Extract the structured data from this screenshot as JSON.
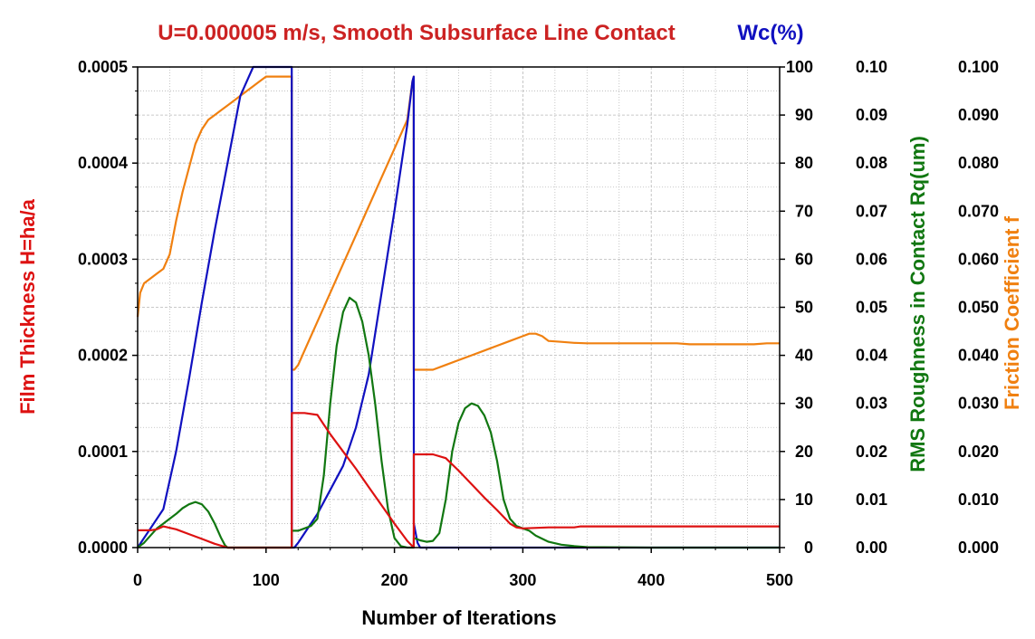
{
  "chart_data": {
    "type": "line",
    "title": "U=0.000005 m/s, Smooth Subsurface Line Contact",
    "title_right": "Wc(%)",
    "xlabel": "Number of Iterations",
    "xlim": [
      0,
      500
    ],
    "x_ticks": [
      "0",
      "100",
      "200",
      "300",
      "400",
      "500"
    ],
    "grid": true,
    "axes": {
      "left": {
        "label": "Film Thickness H=ha/a",
        "color": "#dd1111",
        "range": [
          0,
          0.0005
        ],
        "ticks": [
          "0.0000",
          "0.0001",
          "0.0002",
          "0.0003",
          "0.0004",
          "0.0005"
        ]
      },
      "wc": {
        "label": "Wc(%)",
        "color": "#1010c0",
        "range": [
          0,
          100
        ],
        "ticks": [
          "0",
          "10",
          "20",
          "30",
          "40",
          "50",
          "60",
          "70",
          "80",
          "90",
          "100"
        ]
      },
      "rq": {
        "label": "RMS Roughness in Contact Rq(um)",
        "color": "#117711",
        "range": [
          0,
          0.1
        ],
        "ticks": [
          "0.00",
          "0.01",
          "0.02",
          "0.03",
          "0.04",
          "0.05",
          "0.06",
          "0.07",
          "0.08",
          "0.09",
          "0.10"
        ]
      },
      "f": {
        "label": "Friction Coefficient f",
        "color": "#f08010",
        "range": [
          0,
          0.1
        ],
        "ticks": [
          "0.000",
          "0.010",
          "0.020",
          "0.030",
          "0.040",
          "0.050",
          "0.060",
          "0.070",
          "0.080",
          "0.090",
          "0.100"
        ]
      }
    },
    "series": [
      {
        "axis": "f",
        "color": "#f08010",
        "x": [
          0,
          2,
          5,
          10,
          15,
          20,
          25,
          30,
          35,
          40,
          45,
          50,
          55,
          60,
          65,
          70,
          80,
          90,
          95,
          100,
          110,
          120,
          120.1,
          122,
          125,
          130,
          140,
          150,
          160,
          170,
          180,
          190,
          200,
          210,
          214,
          215,
          215.1,
          217,
          220,
          230,
          240,
          250,
          260,
          270,
          280,
          290,
          300,
          305,
          310,
          315,
          320,
          330,
          340,
          350,
          400,
          420,
          430,
          450,
          480,
          490,
          500
        ],
        "y": [
          0.048,
          0.053,
          0.055,
          0.056,
          0.057,
          0.058,
          0.061,
          0.068,
          0.074,
          0.079,
          0.084,
          0.087,
          0.089,
          0.09,
          0.091,
          0.092,
          0.094,
          0.096,
          0.097,
          0.098,
          0.098,
          0.098,
          0.037,
          0.037,
          0.038,
          0.041,
          0.047,
          0.053,
          0.059,
          0.065,
          0.071,
          0.077,
          0.083,
          0.089,
          0.097,
          0.098,
          0.037,
          0.037,
          0.037,
          0.037,
          0.038,
          0.039,
          0.04,
          0.041,
          0.042,
          0.043,
          0.044,
          0.0445,
          0.0445,
          0.044,
          0.043,
          0.0428,
          0.0426,
          0.0425,
          0.0425,
          0.0425,
          0.0423,
          0.0423,
          0.0423,
          0.0425,
          0.0425
        ]
      },
      {
        "axis": "wc",
        "color": "#1010c0",
        "x": [
          0,
          5,
          10,
          20,
          30,
          40,
          50,
          60,
          70,
          80,
          85,
          90,
          95,
          100,
          110,
          120,
          120.1,
          122,
          125,
          130,
          140,
          150,
          160,
          170,
          180,
          190,
          200,
          210,
          214,
          215,
          215.1,
          218,
          220,
          250,
          300,
          400,
          500
        ],
        "y": [
          0,
          2,
          4,
          8,
          20,
          35,
          51,
          66,
          80,
          94,
          97,
          100,
          100,
          100,
          100,
          100,
          0,
          0,
          1,
          3,
          7,
          12,
          17,
          25,
          36,
          53,
          70,
          88,
          97,
          98,
          5,
          1,
          0,
          0,
          0,
          0,
          0
        ]
      },
      {
        "axis": "rq",
        "color": "#117711",
        "x": [
          0,
          5,
          10,
          15,
          20,
          25,
          30,
          35,
          40,
          45,
          50,
          55,
          60,
          65,
          68,
          70,
          100,
          120,
          120.1,
          125,
          130,
          135,
          140,
          145,
          150,
          155,
          160,
          165,
          170,
          175,
          180,
          185,
          190,
          195,
          200,
          205,
          210,
          215,
          215.1,
          220,
          225,
          230,
          235,
          240,
          245,
          250,
          255,
          260,
          265,
          270,
          275,
          280,
          285,
          290,
          295,
          300,
          305,
          310,
          320,
          330,
          340,
          350,
          400,
          500
        ],
        "y": [
          0,
          0.001,
          0.0025,
          0.004,
          0.005,
          0.006,
          0.007,
          0.0082,
          0.009,
          0.0095,
          0.009,
          0.0075,
          0.005,
          0.002,
          0.0005,
          0,
          0,
          0,
          0.0035,
          0.0035,
          0.004,
          0.0045,
          0.006,
          0.015,
          0.03,
          0.042,
          0.049,
          0.052,
          0.051,
          0.047,
          0.04,
          0.03,
          0.018,
          0.008,
          0.002,
          0.0003,
          0,
          0,
          0.002,
          0.0015,
          0.0012,
          0.0014,
          0.003,
          0.01,
          0.02,
          0.026,
          0.029,
          0.03,
          0.0295,
          0.0275,
          0.024,
          0.018,
          0.01,
          0.006,
          0.0045,
          0.004,
          0.0035,
          0.0025,
          0.0012,
          0.0006,
          0.0003,
          0.0001,
          0,
          0
        ]
      },
      {
        "axis": "left",
        "color": "#dd1111",
        "x": [
          0,
          5,
          10,
          15,
          20,
          30,
          40,
          50,
          60,
          70,
          100,
          120,
          120.1,
          125,
          130,
          140,
          145,
          150,
          160,
          170,
          180,
          190,
          200,
          210,
          215,
          215.1,
          220,
          230,
          240,
          250,
          260,
          270,
          280,
          290,
          295,
          300,
          320,
          340,
          345,
          400,
          500
        ],
        "y": [
          1.8e-05,
          1.8e-05,
          1.8e-05,
          1.9e-05,
          2.2e-05,
          1.9e-05,
          1.4e-05,
          9e-06,
          4e-06,
          0,
          0,
          0,
          0.00014,
          0.00014,
          0.00014,
          0.000138,
          0.000128,
          0.000118,
          0.0001,
          8.2e-05,
          6.3e-05,
          4.4e-05,
          2.5e-05,
          7e-06,
          0,
          9.7e-05,
          9.7e-05,
          9.7e-05,
          9.3e-05,
          8e-05,
          6.6e-05,
          5.2e-05,
          3.9e-05,
          2.5e-05,
          2.1e-05,
          2e-05,
          2.1e-05,
          2.1e-05,
          2.2e-05,
          2.2e-05,
          2.2e-05
        ]
      }
    ]
  }
}
